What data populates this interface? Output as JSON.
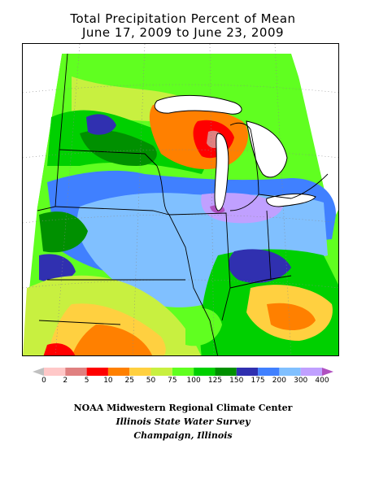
{
  "title": {
    "line1": "Total Precipitation Percent of Mean",
    "line2": "June 17, 2009 to June 23, 2009"
  },
  "legend": {
    "ticks": [
      "0",
      "2",
      "5",
      "10",
      "25",
      "50",
      "75",
      "100",
      "125",
      "150",
      "175",
      "200",
      "300",
      "400"
    ],
    "colors": [
      "#c0c0c0",
      "#ffc8c8",
      "#e08080",
      "#ff0000",
      "#ff8000",
      "#ffd040",
      "#c8f040",
      "#60ff20",
      "#00d000",
      "#009000",
      "#3030b0",
      "#4080ff",
      "#80c0ff",
      "#c0a0ff",
      "#b050c0"
    ]
  },
  "credits": {
    "line1": "NOAA Midwestern Regional Climate Center",
    "line2": "Illinois State Water Survey",
    "line3": "Champaign, Illinois"
  }
}
